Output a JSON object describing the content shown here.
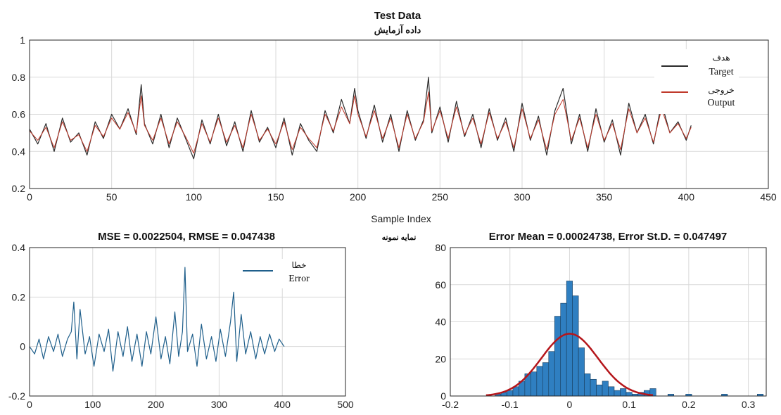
{
  "colors": {
    "target": "#2b2b2b",
    "output": "#c0392b",
    "error_line": "#1f5f8b",
    "hist_bar": "#2f7fc1",
    "fit_curve": "#b5161b",
    "grid": "#d9d9d9"
  },
  "top_plot": {
    "title": "Test Data",
    "subtitle": "داده آزمایش",
    "xlabel": "Sample Index",
    "xlabel_fa": "نمایه نمونه",
    "legend": [
      {
        "fa": "هدف",
        "en": "Target"
      },
      {
        "fa": "خروجی",
        "en": "Output"
      }
    ],
    "x_ticks": [
      "0",
      "50",
      "100",
      "150",
      "200",
      "250",
      "300",
      "350",
      "400",
      "450"
    ],
    "y_ticks": [
      "0.2",
      "0.4",
      "0.6",
      "0.8",
      "1"
    ]
  },
  "error_plot": {
    "title": "MSE = 0.0022504, RMSE = 0.047438",
    "legend": {
      "fa": "خطا",
      "en": "Error"
    },
    "x_ticks": [
      "0",
      "100",
      "200",
      "300",
      "400",
      "500"
    ],
    "y_ticks": [
      "-0.2",
      "0",
      "0.2",
      "0.4"
    ]
  },
  "hist_plot": {
    "title": "Error Mean = 0.00024738, Error St.D. = 0.047497",
    "x_ticks": [
      "-0.2",
      "-0.1",
      "0",
      "0.1",
      "0.2",
      "0.3"
    ],
    "y_ticks": [
      "0",
      "20",
      "40",
      "60",
      "80"
    ]
  },
  "chart_data": [
    {
      "type": "line",
      "title": "Test Data",
      "xlabel": "Sample Index",
      "ylabel": "",
      "xlim": [
        0,
        450
      ],
      "ylim": [
        0.2,
        1
      ],
      "grid": true,
      "legend_position": "top-right",
      "series": [
        {
          "name": "Target",
          "x": [
            0,
            5,
            10,
            15,
            20,
            25,
            30,
            35,
            40,
            45,
            50,
            55,
            60,
            65,
            68,
            70,
            75,
            80,
            85,
            90,
            95,
            100,
            105,
            110,
            115,
            120,
            125,
            130,
            135,
            140,
            145,
            150,
            155,
            160,
            165,
            170,
            175,
            180,
            185,
            190,
            195,
            198,
            200,
            205,
            210,
            215,
            220,
            225,
            230,
            235,
            240,
            243,
            245,
            250,
            255,
            260,
            265,
            270,
            275,
            280,
            285,
            290,
            295,
            300,
            305,
            310,
            315,
            320,
            325,
            330,
            335,
            340,
            345,
            350,
            355,
            360,
            365,
            370,
            375,
            380,
            385,
            390,
            395,
            400,
            403
          ],
          "y": [
            0.52,
            0.44,
            0.55,
            0.4,
            0.58,
            0.45,
            0.5,
            0.38,
            0.56,
            0.47,
            0.6,
            0.52,
            0.63,
            0.49,
            0.76,
            0.55,
            0.44,
            0.6,
            0.42,
            0.58,
            0.47,
            0.36,
            0.57,
            0.44,
            0.6,
            0.43,
            0.56,
            0.4,
            0.62,
            0.45,
            0.53,
            0.42,
            0.58,
            0.38,
            0.55,
            0.46,
            0.4,
            0.62,
            0.5,
            0.68,
            0.55,
            0.74,
            0.62,
            0.47,
            0.65,
            0.45,
            0.6,
            0.4,
            0.62,
            0.46,
            0.57,
            0.8,
            0.5,
            0.64,
            0.45,
            0.67,
            0.48,
            0.6,
            0.42,
            0.63,
            0.46,
            0.58,
            0.4,
            0.66,
            0.46,
            0.59,
            0.38,
            0.62,
            0.74,
            0.44,
            0.6,
            0.4,
            0.63,
            0.45,
            0.57,
            0.38,
            0.66,
            0.5,
            0.6,
            0.44,
            0.66,
            0.5,
            0.56,
            0.46,
            0.54
          ]
        },
        {
          "name": "Output",
          "x": [
            0,
            5,
            10,
            15,
            20,
            25,
            30,
            35,
            40,
            45,
            50,
            55,
            60,
            65,
            68,
            70,
            75,
            80,
            85,
            90,
            95,
            100,
            105,
            110,
            115,
            120,
            125,
            130,
            135,
            140,
            145,
            150,
            155,
            160,
            165,
            170,
            175,
            180,
            185,
            190,
            195,
            198,
            200,
            205,
            210,
            215,
            220,
            225,
            230,
            235,
            240,
            243,
            245,
            250,
            255,
            260,
            265,
            270,
            275,
            280,
            285,
            290,
            295,
            300,
            305,
            310,
            315,
            320,
            325,
            330,
            335,
            340,
            345,
            350,
            355,
            360,
            365,
            370,
            375,
            380,
            385,
            390,
            395,
            400,
            403
          ],
          "y": [
            0.51,
            0.46,
            0.53,
            0.42,
            0.56,
            0.46,
            0.49,
            0.4,
            0.54,
            0.48,
            0.58,
            0.52,
            0.61,
            0.5,
            0.7,
            0.54,
            0.46,
            0.58,
            0.44,
            0.56,
            0.48,
            0.39,
            0.55,
            0.45,
            0.58,
            0.45,
            0.54,
            0.42,
            0.6,
            0.46,
            0.52,
            0.44,
            0.56,
            0.41,
            0.53,
            0.47,
            0.42,
            0.6,
            0.51,
            0.64,
            0.55,
            0.7,
            0.6,
            0.48,
            0.62,
            0.47,
            0.58,
            0.42,
            0.6,
            0.47,
            0.56,
            0.72,
            0.51,
            0.62,
            0.47,
            0.64,
            0.49,
            0.58,
            0.44,
            0.61,
            0.47,
            0.56,
            0.42,
            0.63,
            0.47,
            0.57,
            0.41,
            0.6,
            0.68,
            0.46,
            0.58,
            0.42,
            0.6,
            0.46,
            0.55,
            0.41,
            0.63,
            0.5,
            0.58,
            0.45,
            0.63,
            0.5,
            0.55,
            0.47,
            0.53
          ]
        }
      ]
    },
    {
      "type": "line",
      "title": "MSE = 0.0022504, RMSE = 0.047438",
      "xlim": [
        0,
        500
      ],
      "ylim": [
        -0.2,
        0.4
      ],
      "grid": true,
      "legend_position": "top-right",
      "series": [
        {
          "name": "Error",
          "x": [
            0,
            8,
            15,
            22,
            30,
            38,
            45,
            52,
            60,
            66,
            70,
            75,
            80,
            88,
            95,
            102,
            110,
            118,
            125,
            132,
            140,
            148,
            155,
            162,
            170,
            178,
            185,
            192,
            200,
            208,
            215,
            222,
            230,
            236,
            242,
            246,
            250,
            258,
            265,
            272,
            280,
            288,
            295,
            302,
            310,
            318,
            323,
            328,
            335,
            342,
            350,
            358,
            365,
            372,
            380,
            388,
            395,
            403
          ],
          "y": [
            0.0,
            -0.03,
            0.03,
            -0.05,
            0.04,
            -0.02,
            0.05,
            -0.04,
            0.03,
            0.06,
            0.18,
            -0.05,
            0.15,
            -0.03,
            0.04,
            -0.08,
            0.05,
            -0.02,
            0.07,
            -0.1,
            0.06,
            -0.04,
            0.08,
            -0.06,
            0.05,
            -0.08,
            0.06,
            -0.03,
            0.12,
            -0.05,
            0.04,
            -0.07,
            0.14,
            -0.04,
            0.06,
            0.32,
            -0.02,
            0.05,
            -0.08,
            0.09,
            -0.05,
            0.04,
            -0.06,
            0.07,
            -0.04,
            0.1,
            0.22,
            -0.06,
            0.13,
            -0.03,
            0.06,
            -0.05,
            0.04,
            -0.03,
            0.05,
            -0.02,
            0.03,
            0.0
          ]
        }
      ]
    },
    {
      "type": "bar",
      "title": "Error Mean = 0.00024738, Error St.D. = 0.047497",
      "xlim": [
        -0.2,
        0.33
      ],
      "ylim": [
        0,
        80
      ],
      "grid": true,
      "bin_width": 0.01,
      "bin_centers": [
        -0.12,
        -0.11,
        -0.1,
        -0.09,
        -0.08,
        -0.07,
        -0.06,
        -0.05,
        -0.04,
        -0.03,
        -0.02,
        -0.01,
        0.0,
        0.01,
        0.02,
        0.03,
        0.04,
        0.05,
        0.06,
        0.07,
        0.08,
        0.09,
        0.1,
        0.11,
        0.12,
        0.13,
        0.14,
        0.15,
        0.16,
        0.17,
        0.18,
        0.19,
        0.2,
        0.21,
        0.22,
        0.23,
        0.24,
        0.25,
        0.26,
        0.27,
        0.28,
        0.29,
        0.3,
        0.31,
        0.32
      ],
      "values": [
        1,
        2,
        3,
        5,
        8,
        12,
        13,
        16,
        18,
        24,
        43,
        50,
        62,
        54,
        26,
        12,
        9,
        6,
        8,
        5,
        3,
        4,
        2,
        1,
        2,
        3,
        4,
        0,
        0,
        1,
        0,
        0,
        1,
        0,
        0,
        0,
        0,
        0,
        1,
        0,
        0,
        0,
        0,
        0,
        1
      ],
      "fit_curve": {
        "type": "normal",
        "mean": 0.00024738,
        "std": 0.047497
      }
    }
  ]
}
